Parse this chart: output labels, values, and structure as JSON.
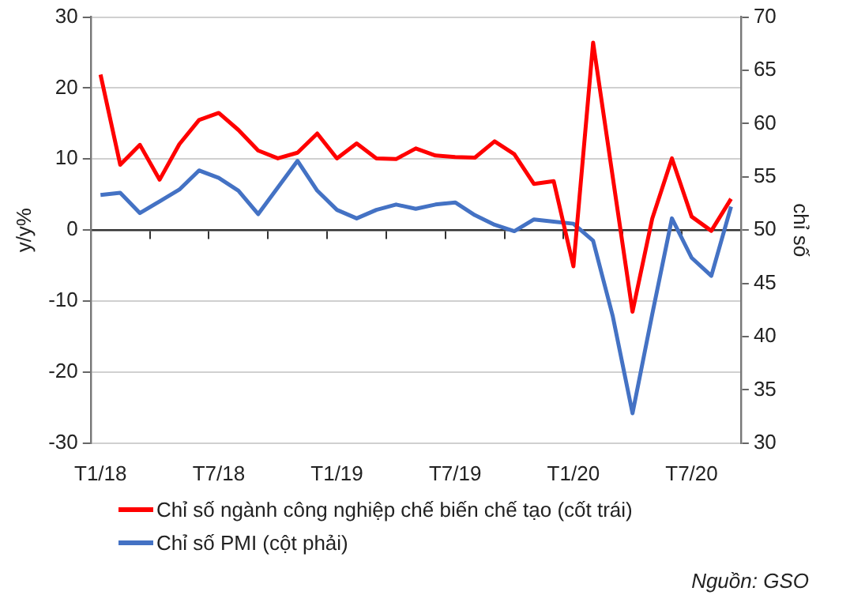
{
  "chart_data": {
    "type": "line",
    "ylabel": "y/y%",
    "y2label": "chỉ số",
    "categories": [
      "T1/18",
      null,
      null,
      null,
      null,
      null,
      "T7/18",
      null,
      null,
      null,
      null,
      null,
      "T1/19",
      null,
      null,
      null,
      null,
      null,
      "T7/19",
      null,
      null,
      null,
      null,
      null,
      "T1/20",
      null,
      null,
      null,
      null,
      null,
      "T7/20",
      null,
      null
    ],
    "series": [
      {
        "name": "Chỉ số ngành công nghiệp chế biến chế tạo (cốt trái)",
        "color": "#ff0000",
        "values": [
          21.9,
          9.2,
          12.0,
          7.1,
          12.1,
          15.5,
          16.5,
          14.1,
          11.2,
          10.1,
          10.9,
          13.6,
          10.1,
          12.2,
          10.1,
          10.0,
          11.5,
          10.5,
          10.3,
          10.2,
          12.5,
          10.7,
          6.5,
          6.9,
          -5.1,
          26.4,
          7.4,
          -11.5,
          1.6,
          10.1,
          1.9,
          -0.1,
          4.4
        ]
      },
      {
        "name": "Chỉ số PMI (cột phải)",
        "color": "#4472c4",
        "axis": "y2",
        "values": [
          53.3,
          53.5,
          51.6,
          52.7,
          53.8,
          55.6,
          54.9,
          53.7,
          51.5,
          54.0,
          56.5,
          53.7,
          51.9,
          51.1,
          51.9,
          52.4,
          52.0,
          52.4,
          52.6,
          51.4,
          50.5,
          49.9,
          51.0,
          50.8,
          50.6,
          49.0,
          41.9,
          32.8,
          42.1,
          51.1,
          47.4,
          45.7,
          52.2
        ]
      }
    ],
    "ylim": [
      -30,
      30
    ],
    "yticks": [
      -30,
      -20,
      -10,
      0,
      10,
      20,
      30
    ],
    "y2lim": [
      30,
      70
    ],
    "y2ticks": [
      30,
      35,
      40,
      45,
      50,
      55,
      60,
      65,
      70
    ],
    "grid": "y",
    "legend": "bottom",
    "marker": "none",
    "line_style": "solid",
    "annotations": [
      "Nguồn: GSO"
    ]
  }
}
